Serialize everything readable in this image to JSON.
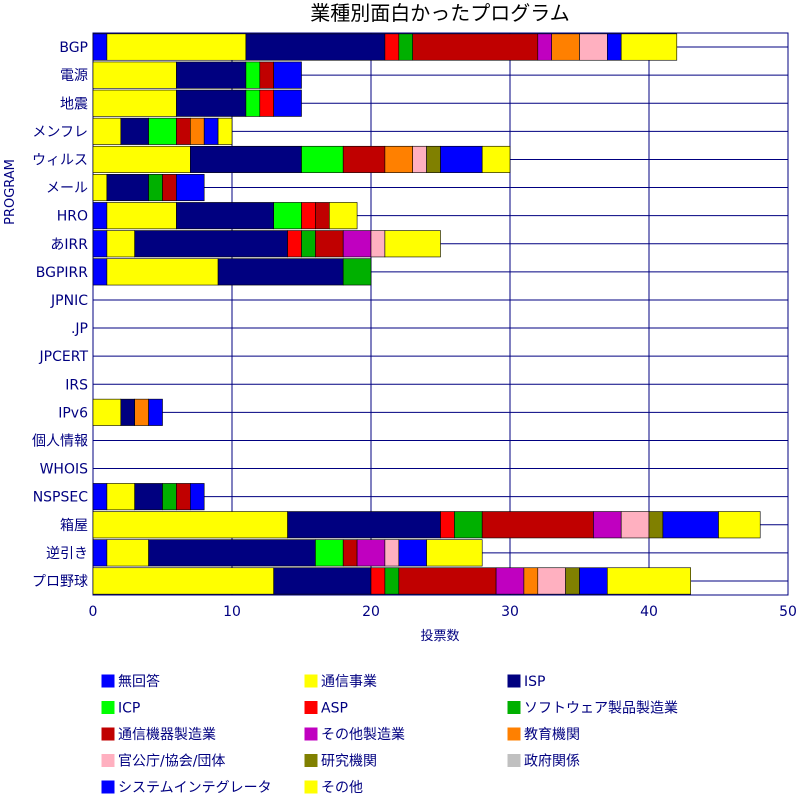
{
  "chart_data": {
    "type": "bar",
    "orientation": "horizontal",
    "stacked": true,
    "title": "業種別面白かったプログラム",
    "xlabel": "投票数",
    "ylabel": "PROGRAM",
    "xlim": [
      0,
      50
    ],
    "xticks": [
      0,
      10,
      20,
      30,
      40,
      50
    ],
    "grid": true,
    "legend_position": "bottom",
    "categories": [
      "BGP",
      "電源",
      "地震",
      "メンフレ",
      "ウィルス",
      "メール",
      "HRO",
      "あIRR",
      "BGPIRR",
      "JPNIC",
      ".JP",
      "JPCERT",
      "IRS",
      "IPv6",
      "個人情報",
      "WHOIS",
      "NSPSEC",
      "箱屋",
      "逆引き",
      "プロ野球"
    ],
    "series": [
      {
        "name": "無回答",
        "color": "#0000ff",
        "values": [
          1,
          0,
          0,
          0,
          0,
          0,
          1,
          1,
          1,
          0,
          0,
          0,
          0,
          0,
          0,
          0,
          1,
          0,
          1,
          0
        ]
      },
      {
        "name": "通信事業",
        "color": "#ffff00",
        "values": [
          10,
          6,
          6,
          2,
          7,
          1,
          5,
          2,
          8,
          0,
          0,
          0,
          0,
          2,
          0,
          0,
          2,
          14,
          3,
          13
        ]
      },
      {
        "name": "ISP",
        "color": "#000080",
        "values": [
          10,
          5,
          5,
          2,
          8,
          3,
          7,
          11,
          9,
          0,
          0,
          0,
          0,
          1,
          0,
          0,
          2,
          11,
          12,
          7
        ]
      },
      {
        "name": "ICP",
        "color": "#00ff00",
        "values": [
          0,
          1,
          1,
          2,
          3,
          0,
          2,
          0,
          0,
          0,
          0,
          0,
          0,
          0,
          0,
          0,
          0,
          0,
          2,
          0
        ]
      },
      {
        "name": "ASP",
        "color": "#ff0000",
        "values": [
          1,
          0,
          1,
          0,
          0,
          0,
          1,
          1,
          0,
          0,
          0,
          0,
          0,
          0,
          0,
          0,
          0,
          1,
          0,
          1
        ]
      },
      {
        "name": "ソフトウェア製品製造業",
        "color": "#00b000",
        "values": [
          1,
          0,
          0,
          0,
          0,
          1,
          0,
          1,
          2,
          0,
          0,
          0,
          0,
          0,
          0,
          0,
          1,
          2,
          0,
          1
        ]
      },
      {
        "name": "通信機器製造業",
        "color": "#c00000",
        "values": [
          9,
          1,
          0,
          1,
          3,
          1,
          1,
          2,
          0,
          0,
          0,
          0,
          0,
          0,
          0,
          0,
          1,
          8,
          1,
          7
        ]
      },
      {
        "name": "その他製造業",
        "color": "#c000c0",
        "values": [
          1,
          0,
          0,
          0,
          0,
          0,
          0,
          2,
          0,
          0,
          0,
          0,
          0,
          0,
          0,
          0,
          0,
          2,
          2,
          2
        ]
      },
      {
        "name": "教育機関",
        "color": "#ff8000",
        "values": [
          2,
          0,
          0,
          1,
          2,
          0,
          0,
          0,
          0,
          0,
          0,
          0,
          0,
          1,
          0,
          0,
          0,
          0,
          0,
          1
        ]
      },
      {
        "name": "官公庁/協会/団体",
        "color": "#ffb0c0",
        "values": [
          2,
          0,
          0,
          0,
          1,
          0,
          0,
          1,
          0,
          0,
          0,
          0,
          0,
          0,
          0,
          0,
          0,
          2,
          1,
          2
        ]
      },
      {
        "name": "研究機関",
        "color": "#808000",
        "values": [
          0,
          0,
          0,
          0,
          1,
          0,
          0,
          0,
          0,
          0,
          0,
          0,
          0,
          0,
          0,
          0,
          0,
          1,
          0,
          1
        ]
      },
      {
        "name": "政府関係",
        "color": "#c0c0c0",
        "values": [
          0,
          0,
          0,
          0,
          0,
          0,
          0,
          0,
          0,
          0,
          0,
          0,
          0,
          0,
          0,
          0,
          0,
          0,
          0,
          0
        ]
      },
      {
        "name": "システムインテグレータ",
        "color": "#0000ff",
        "values": [
          1,
          2,
          2,
          1,
          3,
          2,
          0,
          0,
          0,
          0,
          0,
          0,
          0,
          1,
          0,
          0,
          1,
          4,
          2,
          2
        ]
      },
      {
        "name": "その他",
        "color": "#ffff00",
        "values": [
          4,
          0,
          0,
          1,
          2,
          0,
          2,
          4,
          0,
          0,
          0,
          0,
          0,
          0,
          0,
          0,
          0,
          3,
          4,
          6
        ]
      }
    ]
  }
}
